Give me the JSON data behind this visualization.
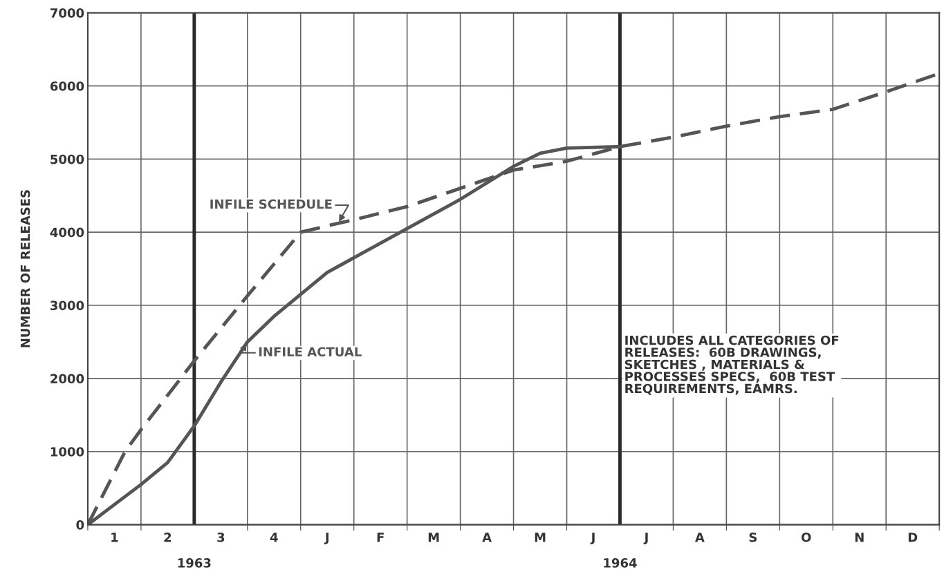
{
  "chart_data": {
    "type": "line",
    "ylabel": "NUMBER OF RELEASES",
    "xlim": [
      0,
      16
    ],
    "xticks": [
      {
        "value": 0,
        "label": null
      },
      {
        "value": 1,
        "label": null
      },
      {
        "value": 3,
        "label": null
      },
      {
        "value": 4,
        "label": null
      },
      {
        "value": 5,
        "label": null
      },
      {
        "value": 6,
        "label": null
      },
      {
        "value": 7,
        "label": null
      },
      {
        "value": 8,
        "label": null
      },
      {
        "value": 9,
        "label": null
      },
      {
        "value": 11,
        "label": null
      },
      {
        "value": 12,
        "label": null
      },
      {
        "value": 13,
        "label": null
      },
      {
        "value": 14,
        "label": null
      },
      {
        "value": 15,
        "label": null
      },
      {
        "value": 16,
        "label": null
      },
      {
        "value": 0.5,
        "label": "1"
      },
      {
        "value": 1.5,
        "label": "2"
      },
      {
        "value": 2.5,
        "label": "3"
      },
      {
        "value": 3.5,
        "label": "4"
      },
      {
        "value": 4.5,
        "label": "J"
      },
      {
        "value": 5.5,
        "label": "F"
      },
      {
        "value": 6.5,
        "label": "M"
      },
      {
        "value": 7.5,
        "label": "A"
      },
      {
        "value": 8.5,
        "label": "M"
      },
      {
        "value": 9.5,
        "label": "J"
      },
      {
        "value": 10.5,
        "label": "J"
      },
      {
        "value": 11.5,
        "label": "A"
      },
      {
        "value": 12.5,
        "label": "S"
      },
      {
        "value": 13.5,
        "label": "O"
      },
      {
        "value": 14.5,
        "label": "N"
      },
      {
        "value": 15.5,
        "label": "D"
      }
    ],
    "ylim": [
      0,
      7000
    ],
    "yticks": [
      0,
      1000,
      2000,
      3000,
      4000,
      5000,
      6000,
      7000
    ],
    "grid": true,
    "series": [
      {
        "name": "INFILE SCHEDULE",
        "color": "#555555",
        "line_style": "dashed",
        "x": [
          0,
          0.7,
          1,
          2,
          3,
          4,
          4.7,
          5,
          6,
          7,
          8,
          9,
          10,
          11,
          12,
          13,
          14,
          15,
          16
        ],
        "values": [
          0,
          1000,
          1300,
          2240,
          3130,
          4000,
          4120,
          4170,
          4350,
          4600,
          4850,
          4970,
          5170,
          5300,
          5450,
          5580,
          5680,
          5920,
          6170
        ]
      },
      {
        "name": "INFILE ACTUAL",
        "color": "#555555",
        "line_style": "solid",
        "x": [
          0,
          1,
          1.5,
          2,
          2.5,
          3,
          3.5,
          4,
          4.5,
          5,
          6,
          7,
          8,
          8.5,
          9,
          10
        ],
        "values": [
          0,
          550,
          850,
          1350,
          1950,
          2500,
          2850,
          3150,
          3450,
          3650,
          4050,
          4450,
          4900,
          5080,
          5150,
          5170
        ]
      }
    ],
    "ref_lines": [
      {
        "axis": "x",
        "value": 2,
        "color": "#2a2a2a"
      },
      {
        "axis": "x",
        "value": 10,
        "color": "#2a2a2a"
      }
    ],
    "annotations": [
      "1963",
      "1964",
      "INCLUDES ALL CATEGORIES OF\nRELEASES:  60B DRAWINGS,\nSKETCHES , MATERIALS &\nPROCESSES SPECS,  60B TEST\nREQUIREMENTS, EAMRS."
    ]
  }
}
